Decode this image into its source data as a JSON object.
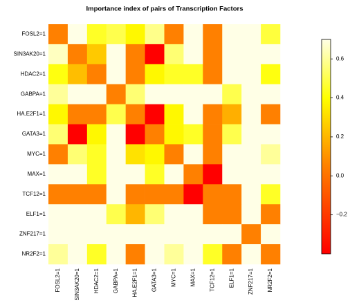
{
  "chart_data": {
    "type": "heatmap",
    "title": "Importance index of pairs of Transcription Factors",
    "rows": [
      "FOSL2=1",
      "SIN3AK20=1",
      "HDAC2=1",
      "GABPA=1",
      "HA.E2F1=1",
      "GATA3=1",
      "MYC=1",
      "MAX=1",
      "TCF12=1",
      "ELF1=1",
      "ZNF217=1",
      "NR2F2=1"
    ],
    "columns": [
      "FOSL2=1",
      "SIN3AK20=1",
      "HDAC2=1",
      "GABPA=1",
      "HA.E2F1=1",
      "GATA3=1",
      "MYC=1",
      "MAX=1",
      "TCF12=1",
      "ELF1=1",
      "ZNF217=1",
      "NR2F2=1"
    ],
    "values": [
      [
        0.05,
        0.7,
        0.45,
        0.5,
        0.38,
        0.58,
        0.05,
        0.7,
        0.05,
        0.7,
        0.7,
        0.48
      ],
      [
        0.65,
        0.05,
        0.25,
        0.7,
        0.05,
        -0.4,
        0.55,
        0.7,
        0.05,
        0.7,
        0.7,
        0.7
      ],
      [
        0.42,
        0.22,
        0.05,
        0.7,
        0.05,
        0.38,
        0.45,
        0.45,
        0.05,
        0.7,
        0.7,
        0.42
      ],
      [
        0.6,
        0.7,
        0.7,
        0.05,
        0.55,
        0.7,
        0.7,
        0.7,
        0.7,
        0.5,
        0.7,
        0.7
      ],
      [
        0.38,
        0.05,
        0.05,
        0.5,
        0.05,
        -0.4,
        0.38,
        0.7,
        0.05,
        0.18,
        0.7,
        0.05
      ],
      [
        0.55,
        -0.4,
        0.38,
        0.7,
        -0.4,
        0.05,
        0.38,
        0.45,
        0.05,
        0.5,
        0.7,
        0.7
      ],
      [
        0.05,
        0.55,
        0.45,
        0.7,
        0.32,
        0.38,
        0.05,
        0.7,
        0.05,
        0.7,
        0.7,
        0.6
      ],
      [
        0.7,
        0.7,
        0.45,
        0.7,
        0.7,
        0.45,
        0.7,
        0.05,
        -0.4,
        0.7,
        0.7,
        0.7
      ],
      [
        0.05,
        0.05,
        0.05,
        0.7,
        0.05,
        0.05,
        0.05,
        -0.4,
        0.05,
        0.05,
        0.7,
        0.45
      ],
      [
        0.7,
        0.7,
        0.7,
        0.5,
        0.2,
        0.55,
        0.7,
        0.7,
        0.05,
        0.05,
        0.7,
        0.05
      ],
      [
        0.7,
        0.7,
        0.7,
        0.7,
        0.7,
        0.7,
        0.7,
        0.7,
        0.7,
        0.7,
        0.05,
        0.7
      ],
      [
        0.6,
        0.7,
        0.45,
        0.7,
        0.05,
        0.7,
        0.6,
        0.7,
        0.45,
        0.05,
        0.7,
        0.05
      ]
    ],
    "colorscale": [
      {
        "value": -0.4,
        "color": "#FF0000"
      },
      {
        "value": 0.05,
        "color": "#FF8000"
      },
      {
        "value": 0.4,
        "color": "#FFFF00"
      },
      {
        "value": 0.7,
        "color": "#FFFFE6"
      }
    ],
    "zlim": [
      -0.4,
      0.7
    ],
    "zticks": [
      {
        "value": -0.2,
        "label": "−0.2"
      },
      {
        "value": 0,
        "label": "0.0"
      },
      0.2,
      0.4,
      0.6
    ]
  }
}
